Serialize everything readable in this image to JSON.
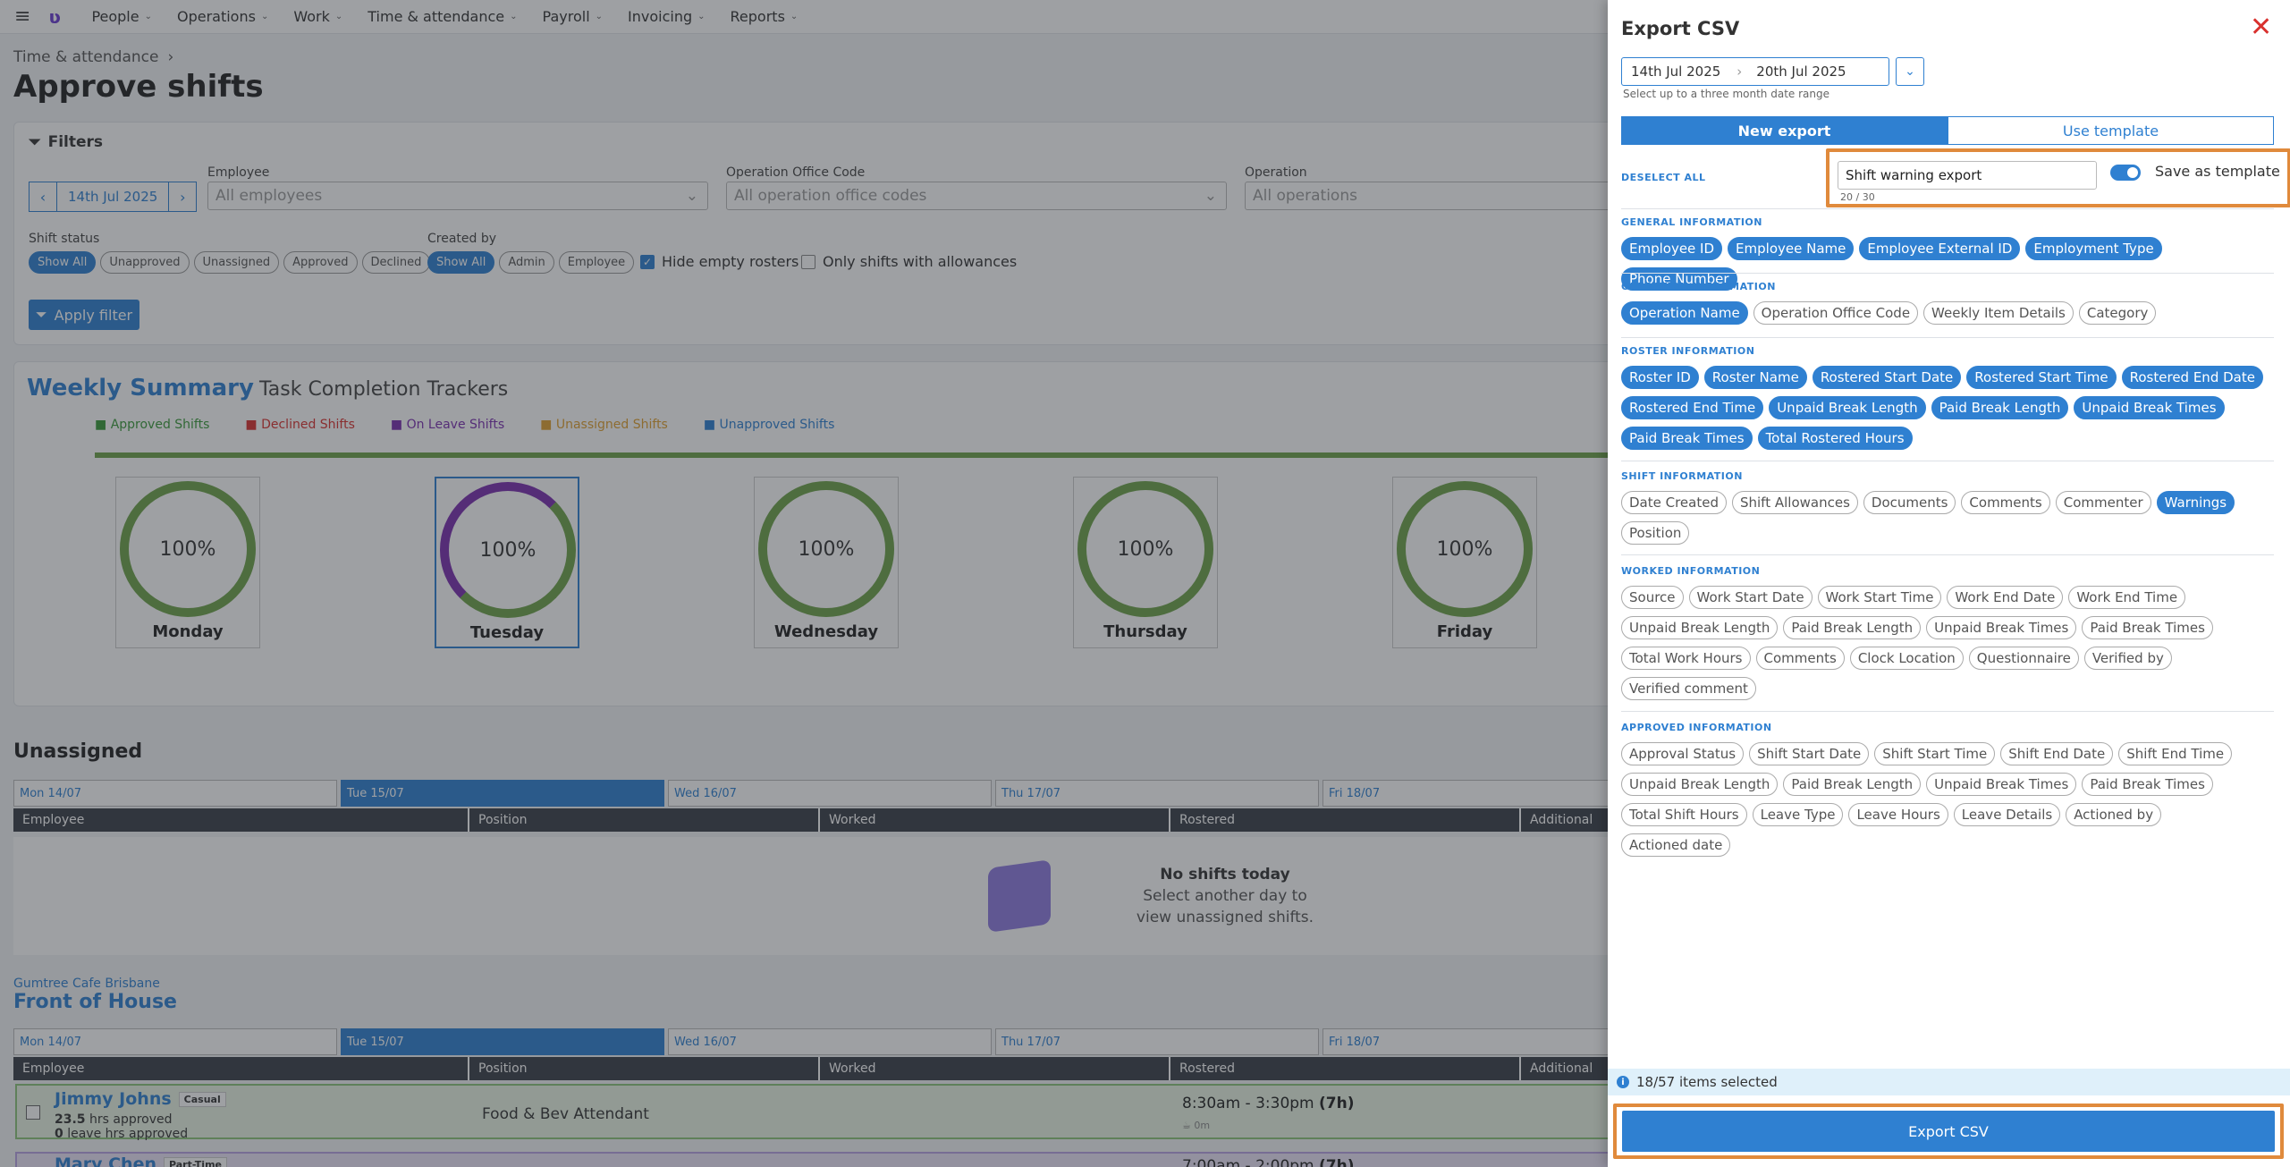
{
  "nav": {
    "items": [
      "People",
      "Operations",
      "Work",
      "Time & attendance",
      "Payroll",
      "Invoicing",
      "Reports"
    ]
  },
  "breadcrumb": "Time & attendance",
  "page_title": "Approve shifts",
  "filters": {
    "title": "Filters",
    "employee_label": "Employee",
    "employee_placeholder": "All employees",
    "office_label": "Operation Office Code",
    "office_placeholder": "All operation office codes",
    "operation_label": "Operation",
    "operation_placeholder": "All operations",
    "date": "14th Jul 2025",
    "shift_status_label": "Shift status",
    "shift_status": [
      "Show All",
      "Unapproved",
      "Unassigned",
      "Approved",
      "Declined"
    ],
    "created_by_label": "Created by",
    "created_by": [
      "Show All",
      "Admin",
      "Employee"
    ],
    "hide_empty": "Hide empty rosters",
    "only_allowances": "Only shifts with allowances",
    "apply": "Apply filter"
  },
  "summary": {
    "title": "Weekly Summary",
    "subtitle": "Task Completion Trackers",
    "legend": [
      {
        "label": "Approved Shifts",
        "color": "#3a9a3a"
      },
      {
        "label": "Declined Shifts",
        "color": "#d9312e"
      },
      {
        "label": "On Leave Shifts",
        "color": "#7b2fb0"
      },
      {
        "label": "Unassigned Shifts",
        "color": "#e0a030"
      },
      {
        "label": "Unapproved Shifts",
        "color": "#2f80d1"
      }
    ],
    "days": [
      {
        "name": "Monday",
        "pct": "100%"
      },
      {
        "name": "Tuesday",
        "pct": "100%"
      },
      {
        "name": "Wednesday",
        "pct": "100%"
      },
      {
        "name": "Thursday",
        "pct": "100%"
      },
      {
        "name": "Friday",
        "pct": "100%"
      }
    ]
  },
  "unassigned": {
    "title": "Unassigned",
    "tabs": [
      "Mon 14/07",
      "Tue 15/07",
      "Wed 16/07",
      "Thu 17/07",
      "Fri 18/07"
    ],
    "columns": [
      "Employee",
      "Position",
      "Worked",
      "Rostered",
      "Additional"
    ],
    "empty_title": "No shifts today",
    "empty_body": "Select another day to view unassigned shifts."
  },
  "group": {
    "sub": "Gumtree Cafe Brisbane",
    "title": "Front of House",
    "tabs": [
      "Mon 14/07",
      "Tue 15/07",
      "Wed 16/07",
      "Thu 17/07",
      "Fri 18/07"
    ],
    "columns": [
      "Employee",
      "Position",
      "Worked",
      "Rostered",
      "Additional"
    ],
    "rows": [
      {
        "name": "Jimmy Johns",
        "badge": "Casual",
        "hours": "23.5",
        "hours_label": "hrs approved",
        "leave": "0",
        "leave_label": "leave hrs approved",
        "position": "Food & Bev Attendant",
        "time": "8:30am - 3:30pm",
        "dur": "(7h)",
        "sub": "0m"
      },
      {
        "name": "Mary Chen",
        "badge": "Part-Time",
        "time": "7:00am - 2:00pm",
        "dur": "(7h)"
      }
    ]
  },
  "panel": {
    "title": "Export CSV",
    "date_from": "14th Jul 2025",
    "date_to": "20th Jul 2025",
    "range_hint": "Select up to a three month date range",
    "tab_new": "New export",
    "tab_template": "Use template",
    "deselect_all": "DESELECT ALL",
    "template_name": "Shift warning export",
    "template_count": "20 / 30",
    "save_template_label": "Save as template",
    "sections": [
      {
        "title": "GENERAL INFORMATION",
        "chips": [
          {
            "label": "Employee ID",
            "on": true
          },
          {
            "label": "Employee Name",
            "on": true
          },
          {
            "label": "Employee External ID",
            "on": true
          },
          {
            "label": "Employment Type",
            "on": true
          },
          {
            "label": "Phone Number",
            "on": true
          }
        ]
      },
      {
        "title": "OPERATION INFORMATION",
        "chips": [
          {
            "label": "Operation Name",
            "on": true
          },
          {
            "label": "Operation Office Code",
            "on": false
          },
          {
            "label": "Weekly Item Details",
            "on": false
          },
          {
            "label": "Category",
            "on": false
          }
        ]
      },
      {
        "title": "ROSTER INFORMATION",
        "chips": [
          {
            "label": "Roster ID",
            "on": true
          },
          {
            "label": "Roster Name",
            "on": true
          },
          {
            "label": "Rostered Start Date",
            "on": true
          },
          {
            "label": "Rostered Start Time",
            "on": true
          },
          {
            "label": "Rostered End Date",
            "on": true
          },
          {
            "label": "Rostered End Time",
            "on": true
          },
          {
            "label": "Unpaid Break Length",
            "on": true
          },
          {
            "label": "Paid Break Length",
            "on": true
          },
          {
            "label": "Unpaid Break Times",
            "on": true
          },
          {
            "label": "Paid Break Times",
            "on": true
          },
          {
            "label": "Total Rostered Hours",
            "on": true
          }
        ]
      },
      {
        "title": "SHIFT INFORMATION",
        "chips": [
          {
            "label": "Date Created",
            "on": false
          },
          {
            "label": "Shift Allowances",
            "on": false
          },
          {
            "label": "Documents",
            "on": false
          },
          {
            "label": "Comments",
            "on": false
          },
          {
            "label": "Commenter",
            "on": false
          },
          {
            "label": "Warnings",
            "on": true
          },
          {
            "label": "Position",
            "on": false
          }
        ]
      },
      {
        "title": "WORKED INFORMATION",
        "chips": [
          {
            "label": "Source",
            "on": false
          },
          {
            "label": "Work Start Date",
            "on": false
          },
          {
            "label": "Work Start Time",
            "on": false
          },
          {
            "label": "Work End Date",
            "on": false
          },
          {
            "label": "Work End Time",
            "on": false
          },
          {
            "label": "Unpaid Break Length",
            "on": false
          },
          {
            "label": "Paid Break Length",
            "on": false
          },
          {
            "label": "Unpaid Break Times",
            "on": false
          },
          {
            "label": "Paid Break Times",
            "on": false
          },
          {
            "label": "Total Work Hours",
            "on": false
          },
          {
            "label": "Comments",
            "on": false
          },
          {
            "label": "Clock Location",
            "on": false
          },
          {
            "label": "Questionnaire",
            "on": false
          },
          {
            "label": "Verified by",
            "on": false
          },
          {
            "label": "Verified comment",
            "on": false
          }
        ]
      },
      {
        "title": "APPROVED INFORMATION",
        "chips": [
          {
            "label": "Approval Status",
            "on": false
          },
          {
            "label": "Shift Start Date",
            "on": false
          },
          {
            "label": "Shift Start Time",
            "on": false
          },
          {
            "label": "Shift End Date",
            "on": false
          },
          {
            "label": "Shift End Time",
            "on": false
          },
          {
            "label": "Unpaid Break Length",
            "on": false
          },
          {
            "label": "Paid Break Length",
            "on": false
          },
          {
            "label": "Unpaid Break Times",
            "on": false
          },
          {
            "label": "Paid Break Times",
            "on": false
          },
          {
            "label": "Total Shift Hours",
            "on": false
          },
          {
            "label": "Leave Type",
            "on": false
          },
          {
            "label": "Leave Hours",
            "on": false
          },
          {
            "label": "Leave Details",
            "on": false
          },
          {
            "label": "Actioned by",
            "on": false
          },
          {
            "label": "Actioned date",
            "on": false
          }
        ]
      }
    ],
    "selected_text": "18/57 items selected",
    "export_button": "Export CSV",
    "accent": "#2f80d1",
    "highlight": "#e08a3c"
  }
}
